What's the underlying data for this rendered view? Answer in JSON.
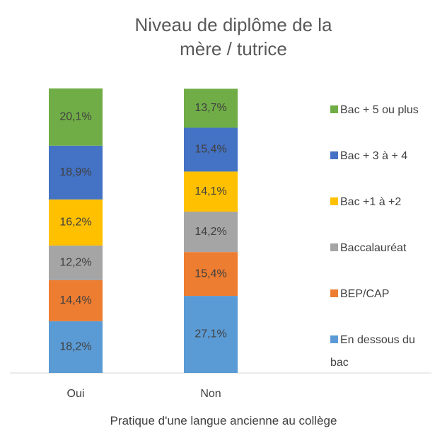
{
  "chart_data": {
    "type": "stacked_bar",
    "title": "Niveau de diplôme de la mère / tutrice",
    "x_label": "Pratique d'une langue ancienne au collège",
    "categories": [
      "Oui",
      "Non"
    ],
    "series": [
      {
        "name": "En dessous du bac",
        "color": "#5b9bd5",
        "values": [
          18.2,
          27.1
        ],
        "value_labels": [
          "18,2%",
          "27,1%"
        ]
      },
      {
        "name": "BEP/CAP",
        "color": "#ed7d31",
        "values": [
          14.4,
          15.4
        ],
        "value_labels": [
          "14,4%",
          "15,4%"
        ]
      },
      {
        "name": "Baccalauréat",
        "color": "#a5a5a5",
        "values": [
          12.2,
          14.2
        ],
        "value_labels": [
          "12,2%",
          "14,2%"
        ]
      },
      {
        "name": "Bac +1 à +2",
        "color": "#ffc000",
        "values": [
          16.2,
          14.1
        ],
        "value_labels": [
          "16,2%",
          "14,1%"
        ]
      },
      {
        "name": "Bac + 3 à + 4",
        "color": "#4472c4",
        "values": [
          18.9,
          15.4
        ],
        "value_labels": [
          "18,9%",
          "15,4%"
        ]
      },
      {
        "name": "Bac + 5 ou plus",
        "color": "#70ad47",
        "values": [
          20.1,
          13.7
        ],
        "value_labels": [
          "20,1%",
          "13,7%"
        ]
      }
    ]
  }
}
